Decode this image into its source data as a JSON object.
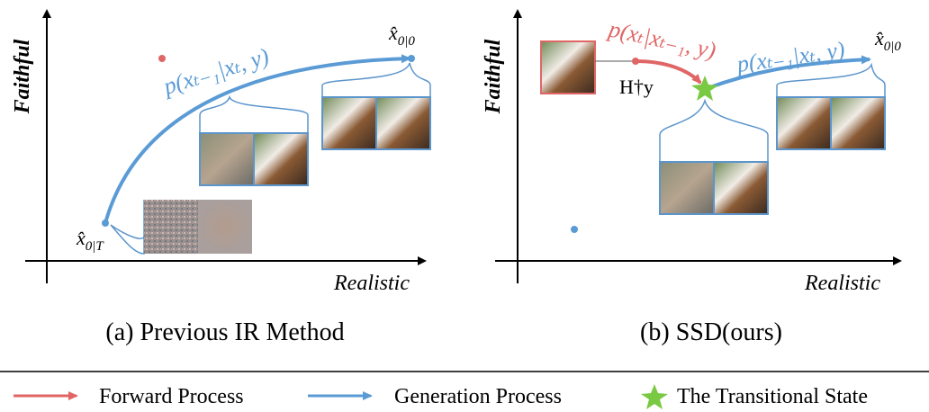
{
  "panels": [
    {
      "y_axis_label": "Faithful",
      "x_axis_label": "Realistic",
      "curve_label": "p(xₜ₋₁|xₜ, y)",
      "start_label": {
        "base": "x̂",
        "sub": "0|T"
      },
      "end_label": {
        "base": "x̂",
        "sub": "0|0"
      },
      "caption": "(a) Previous IR Method"
    },
    {
      "y_axis_label": "Faithful",
      "x_axis_label": "Realistic",
      "forward_label": "p(xₜ|xₜ₋₁, y)",
      "curve_label": "p(xₜ₋₁|xₜ, y)",
      "input_label": "H†y",
      "end_label": {
        "base": "x̂",
        "sub": "0|0"
      },
      "caption": "(b) SSD(ours)"
    }
  ],
  "legend": [
    "Forward Process",
    "Generation Process",
    "The Transitional State"
  ]
}
